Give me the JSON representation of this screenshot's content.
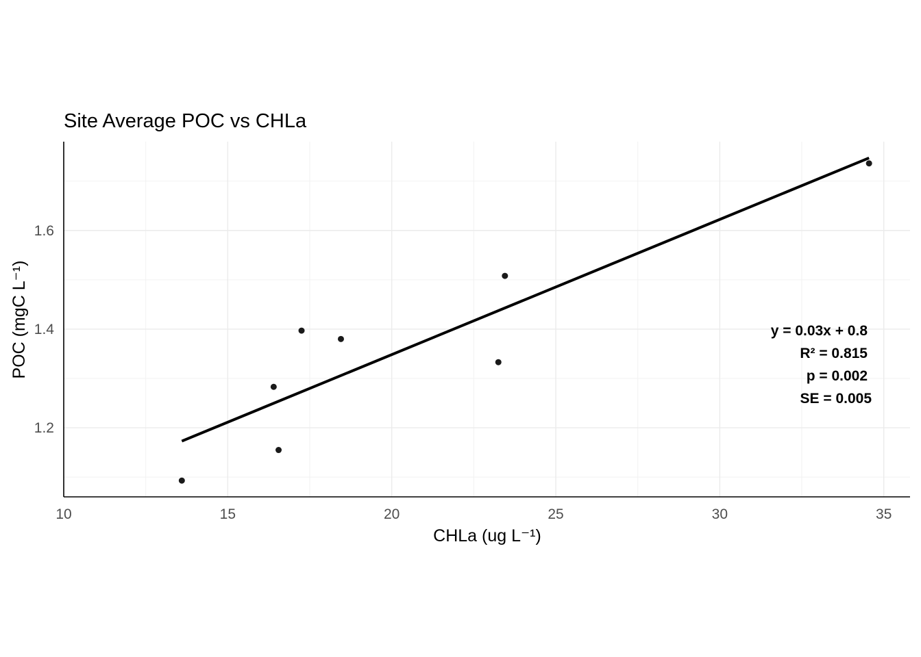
{
  "chart_data": {
    "type": "scatter",
    "title": "Site Average POC vs CHLa",
    "xlabel": "CHLa (ug L⁻¹)",
    "ylabel": "POC (mgC L⁻¹)",
    "xlim": [
      10,
      35.8
    ],
    "ylim": [
      1.06,
      1.78
    ],
    "x_ticks": [
      10,
      15,
      20,
      25,
      30,
      35
    ],
    "y_ticks": [
      1.2,
      1.4,
      1.6
    ],
    "grid": true,
    "points": [
      {
        "x": 13.6,
        "y": 1.093
      },
      {
        "x": 16.4,
        "y": 1.283
      },
      {
        "x": 16.55,
        "y": 1.155
      },
      {
        "x": 17.25,
        "y": 1.397
      },
      {
        "x": 18.45,
        "y": 1.38
      },
      {
        "x": 23.25,
        "y": 1.333
      },
      {
        "x": 23.45,
        "y": 1.508
      },
      {
        "x": 34.55,
        "y": 1.736
      }
    ],
    "fit_line": {
      "x1": 13.6,
      "y1": 1.173,
      "x2": 34.55,
      "y2": 1.747
    },
    "annotations": [
      "y = 0.03x + 0.8",
      "R² = 0.815",
      "p = 0.002",
      "SE = 0.005"
    ]
  }
}
